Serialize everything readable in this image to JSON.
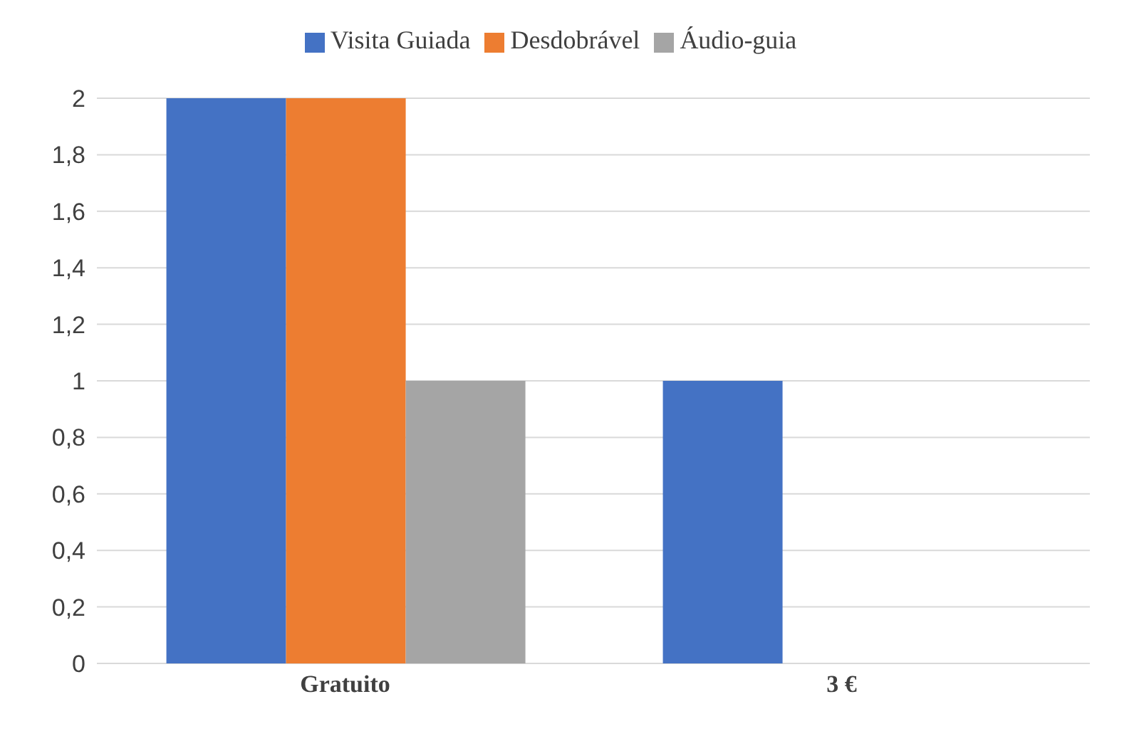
{
  "chart_data": {
    "type": "bar",
    "categories": [
      "Gratuito",
      "3 €"
    ],
    "series": [
      {
        "name": "Visita Guiada",
        "color": "#4472c4",
        "values": [
          2,
          1
        ]
      },
      {
        "name": "Desdobrável",
        "color": "#ed7d31",
        "values": [
          2,
          0
        ]
      },
      {
        "name": "Áudio-guia",
        "color": "#a5a5a5",
        "values": [
          1,
          0
        ]
      }
    ],
    "ylim": [
      0,
      2
    ],
    "yticks": [
      0,
      {
        "value": 0.2,
        "label": "0,2"
      },
      {
        "value": 0.4,
        "label": "0,4"
      },
      {
        "value": 0.6,
        "label": "0,6"
      },
      {
        "value": 0.8,
        "label": "0,8"
      },
      1,
      {
        "value": 1.2,
        "label": "1,2"
      },
      {
        "value": 1.4,
        "label": "1,4"
      },
      {
        "value": 1.6,
        "label": "1,6"
      },
      {
        "value": 1.8,
        "label": "1,8"
      },
      2
    ],
    "grid": "y",
    "legend": "top"
  }
}
